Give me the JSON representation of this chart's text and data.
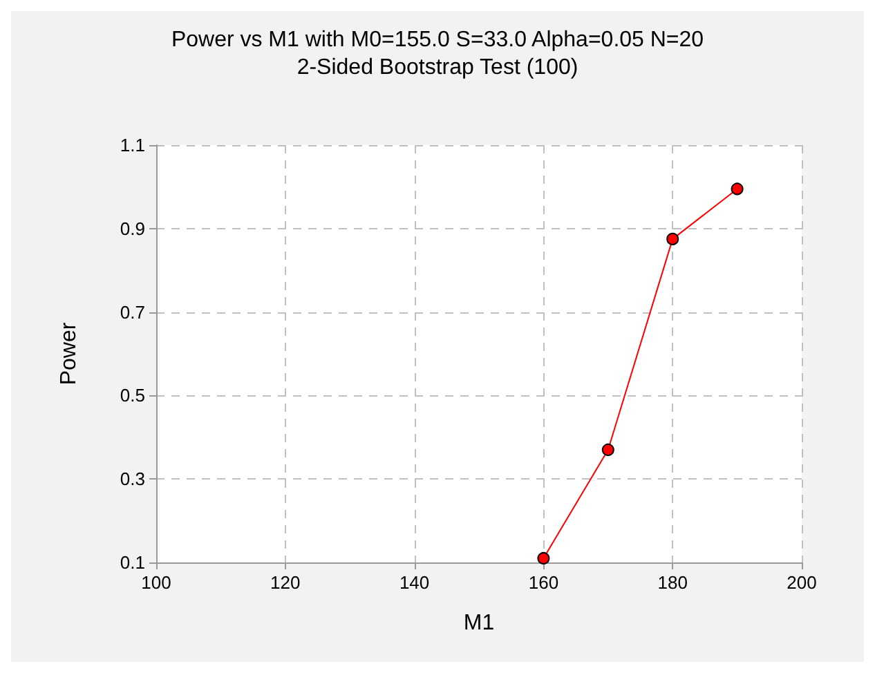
{
  "chart_data": {
    "type": "line",
    "title": "Power vs M1 with M0=155.0 S=33.0 Alpha=0.05 N=20",
    "subtitle": "2-Sided Bootstrap Test (100)",
    "xlabel": "M1",
    "ylabel": "Power",
    "x": [
      160,
      170,
      180,
      190
    ],
    "series": [
      {
        "color": "#ff0000",
        "values": [
          0.11,
          0.37,
          0.875,
          0.995
        ]
      }
    ],
    "xlim": [
      100,
      200
    ],
    "xticks": [
      100,
      120,
      140,
      160,
      180,
      200
    ],
    "ylim": [
      0.1,
      1.1
    ],
    "yticks": [
      0.1,
      0.3,
      0.5,
      0.7,
      0.9,
      1.1
    ],
    "grid": true,
    "marker": "circle",
    "line_style": "solid"
  }
}
